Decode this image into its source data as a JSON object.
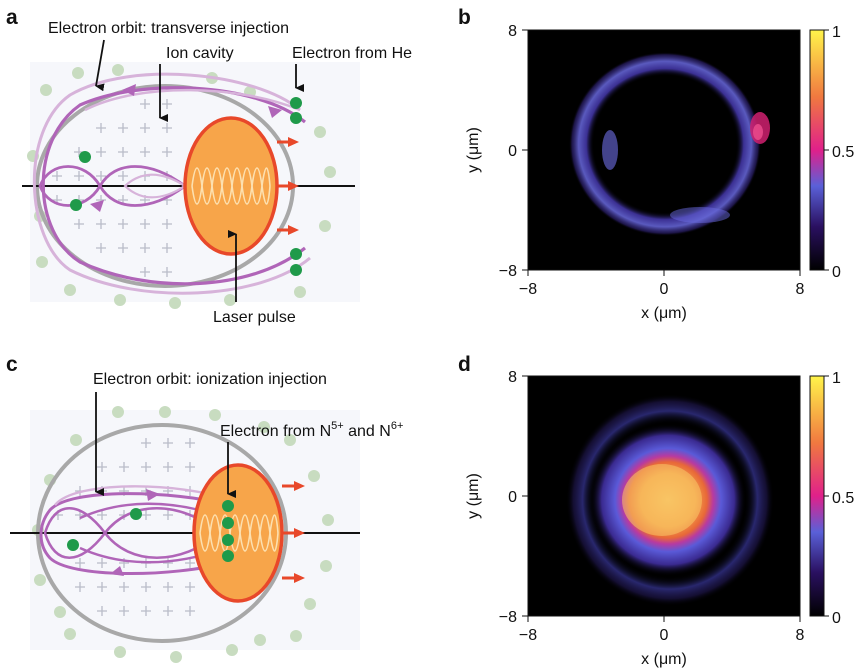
{
  "panels": {
    "a": {
      "letter": "a",
      "labels": {
        "orbit": "Electron orbit: transverse injection",
        "cavity": "Ion cavity",
        "electron": "Electron from He",
        "laser": "Laser pulse"
      }
    },
    "b": {
      "letter": "b"
    },
    "c": {
      "letter": "c",
      "labels": {
        "orbit": "Electron orbit: ionization injection",
        "electron_prefix": "Electron from N",
        "sup1": "5+",
        "and": " and N",
        "sup2": "6+"
      }
    },
    "d": {
      "letter": "d"
    }
  },
  "colors": {
    "orbit": "#b065b8",
    "orbit_light": "#d7b3da",
    "cavity_outline": "#a8a8a8",
    "laser_fill": "#f7a54a",
    "laser_edge": "#e8482a",
    "electron": "#1f9a4a",
    "background_ion": "#c8dcc0",
    "colorbar_top": "#fff44a",
    "colorbar_mid": "#e0208a",
    "colorbar_bottom": "#000000"
  },
  "chart_data": [
    {
      "type": "heatmap",
      "panel": "b",
      "distribution": "ring",
      "xlabel": "x (μm)",
      "ylabel": "y (μm)",
      "xlim": [
        -8,
        8
      ],
      "ylim": [
        -8,
        8
      ],
      "xticks": [
        "−8",
        "0",
        "8"
      ],
      "yticks": [
        "−8",
        "0",
        "8"
      ],
      "colorbar": {
        "min": 0,
        "max": 1,
        "ticks": [
          "0",
          "0.5",
          "1"
        ],
        "colormap": "plasma-like"
      }
    },
    {
      "type": "heatmap",
      "panel": "d",
      "distribution": "filled disk with halo",
      "xlabel": "x (μm)",
      "ylabel": "y (μm)",
      "xlim": [
        -8,
        8
      ],
      "ylim": [
        -8,
        8
      ],
      "xticks": [
        "−8",
        "0",
        "8"
      ],
      "yticks": [
        "−8",
        "0",
        "8"
      ],
      "colorbar": {
        "min": 0,
        "max": 1,
        "ticks": [
          "0",
          "0.5",
          "1"
        ],
        "colormap": "plasma-like"
      }
    }
  ]
}
